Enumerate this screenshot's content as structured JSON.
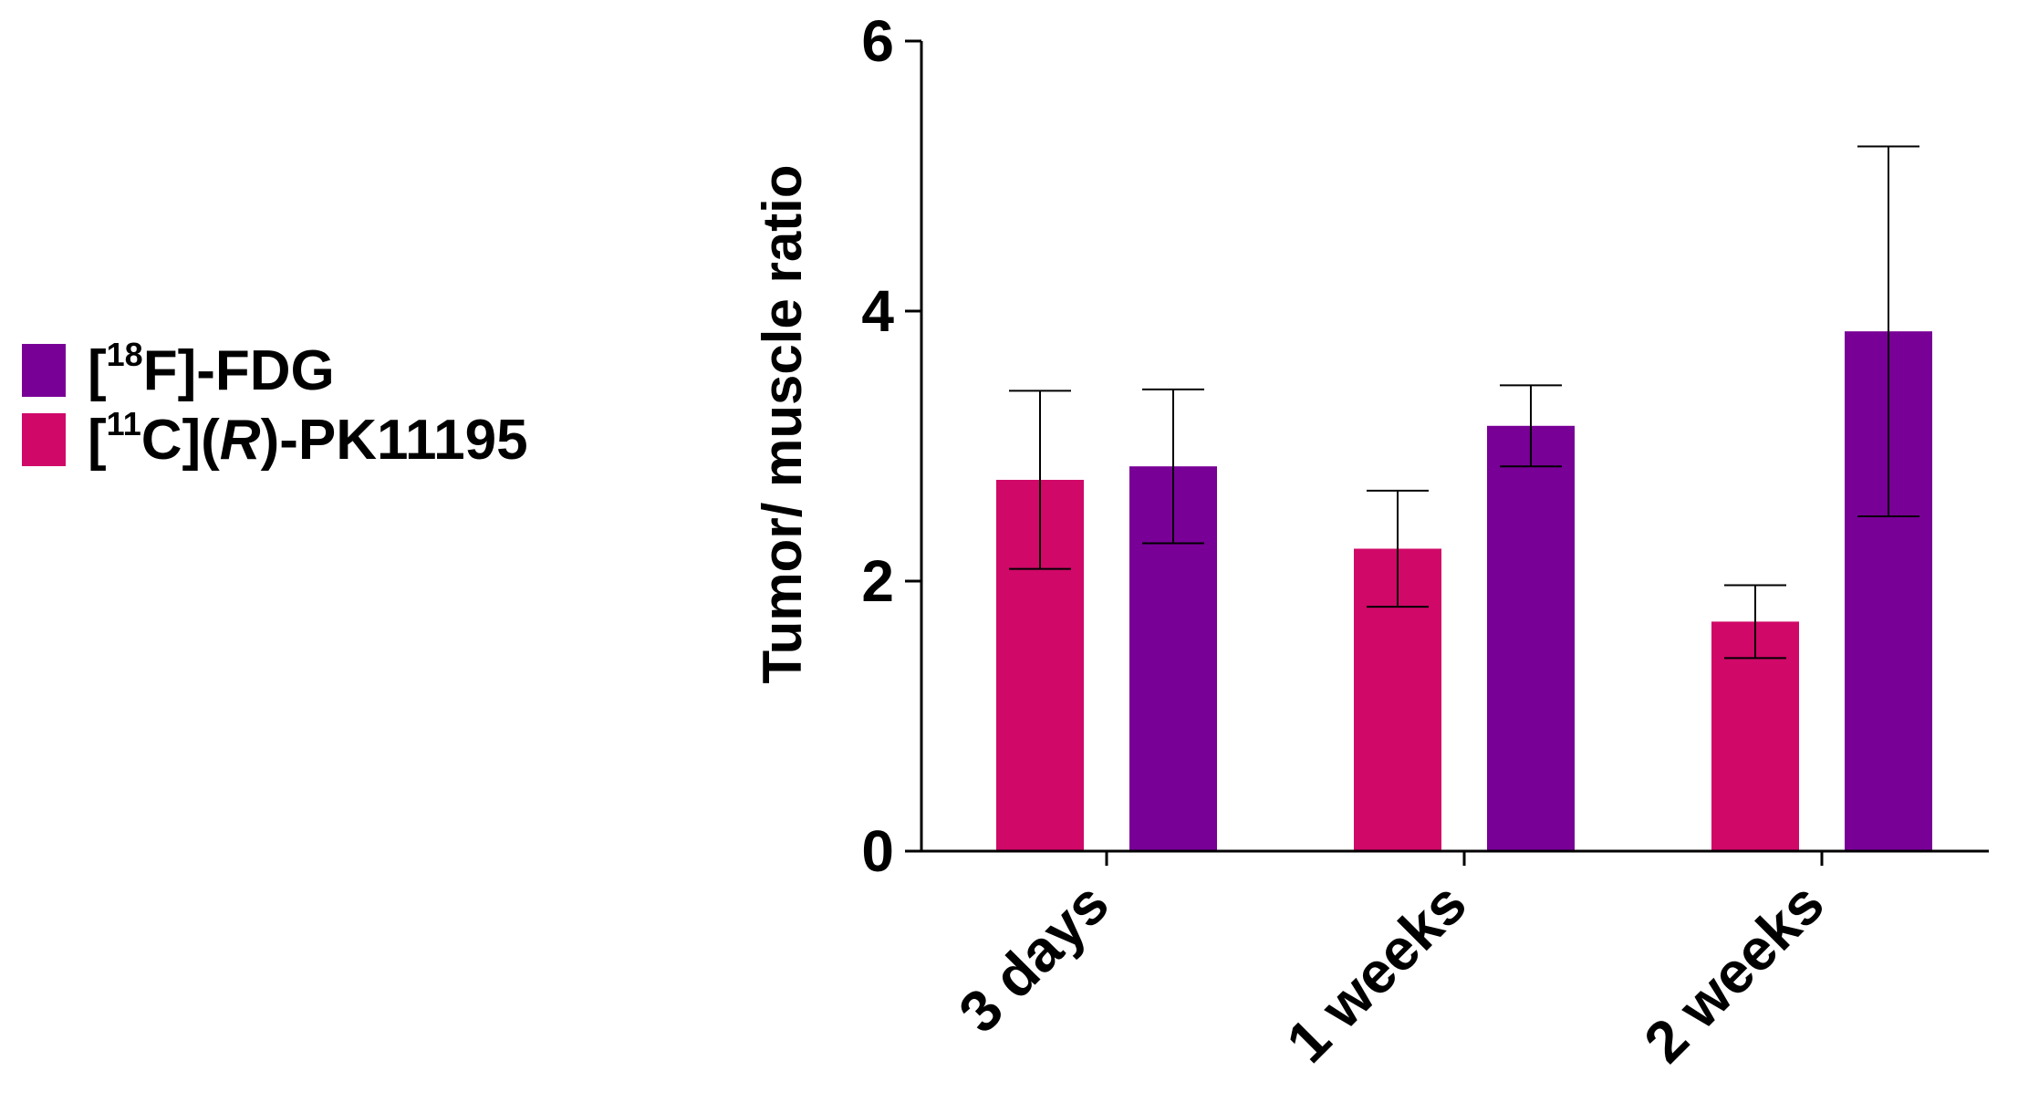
{
  "legend": {
    "items": [
      {
        "series_index": 1,
        "prefix": "[",
        "sup": "18",
        "main": "F]-FDG",
        "italic": "",
        "suffix": ""
      },
      {
        "series_index": 0,
        "prefix": "[",
        "sup": "11",
        "main": "C](",
        "italic": "R",
        "suffix": ")-PK11195"
      }
    ]
  },
  "colors": {
    "fdg": "#780096",
    "pk11195": "#d00868",
    "axis": "#000000"
  },
  "chart_data": {
    "type": "bar",
    "title": "",
    "xlabel": "",
    "ylabel": "Tumor/ muscle ratio",
    "categories": [
      "3 days",
      "1 weeks",
      "2 weeks"
    ],
    "ylim": [
      0,
      6
    ],
    "yticks": [
      "0",
      "2",
      "4",
      "6"
    ],
    "grid": false,
    "legend_position": "left",
    "series": [
      {
        "name": "[11C](R)-PK11195",
        "color": "#d00868",
        "values": [
          2.75,
          2.24,
          1.7
        ],
        "errors": [
          0.66,
          0.43,
          0.27
        ]
      },
      {
        "name": "[18F]-FDG",
        "color": "#780096",
        "values": [
          2.85,
          3.15,
          3.85
        ],
        "errors": [
          0.57,
          0.3,
          1.37
        ]
      }
    ]
  }
}
